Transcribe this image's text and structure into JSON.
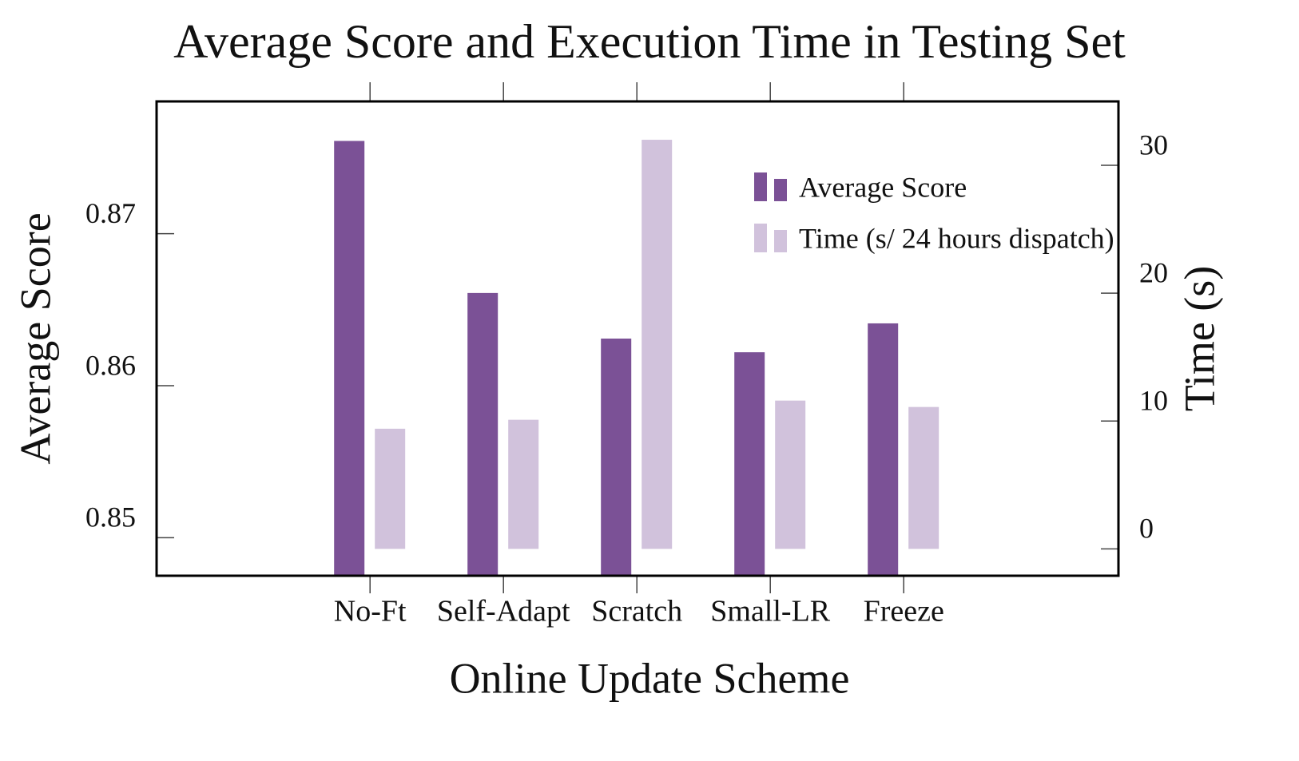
{
  "chart_data": {
    "type": "bar",
    "title": "Average Score and Execution Time in Testing Set",
    "x_label": "Online Update Scheme",
    "y_label": "Average Score",
    "y2_label": "Time (s)",
    "categories": [
      "No-Ft",
      "Self-Adapt",
      "Scratch",
      "Small-LR",
      "Freeze"
    ],
    "series": [
      {
        "name": "Average Score",
        "color": "#7b5196",
        "values": [
          0.8761,
          0.8661,
          0.8631,
          0.8622,
          0.8641
        ]
      },
      {
        "name": "Time (s/ 24 hours dispatch)",
        "color": "#d1c2dc",
        "axis": "y2",
        "values": [
          9.4,
          10.1,
          32,
          11.6,
          11.1
        ]
      }
    ],
    "ylim": [
      0.8475,
      0.8787
    ],
    "yticks": [
      0.85,
      0.86,
      0.87
    ],
    "y2lim": [
      -2.1,
      35
    ],
    "y2ticks": [
      0,
      10,
      20,
      30
    ]
  }
}
